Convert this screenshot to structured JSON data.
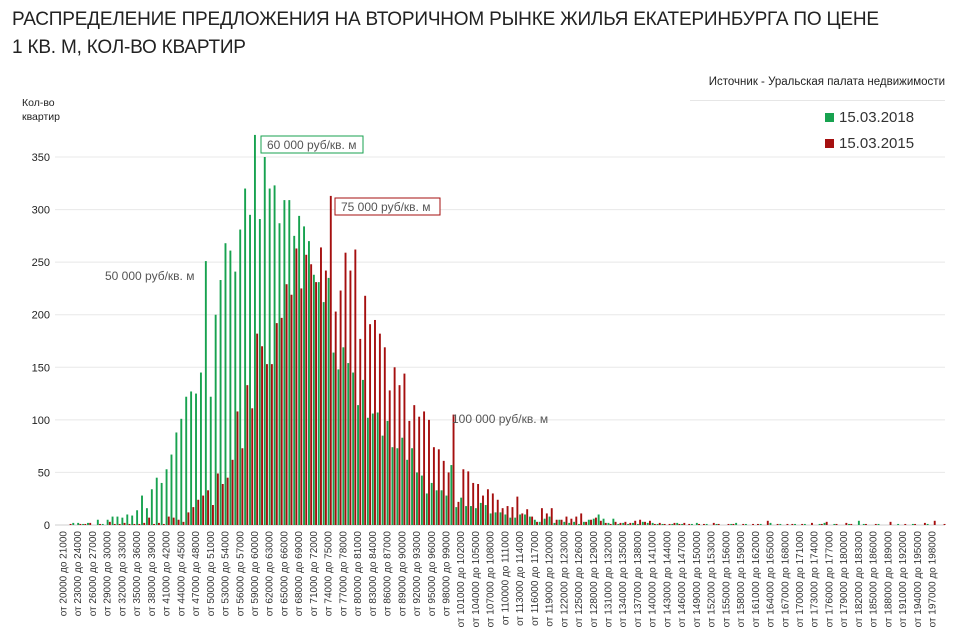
{
  "title_lines": [
    "РАСПРЕДЕЛЕНИЕ ПРЕДЛОЖЕНИЯ НА ВТОРИЧНОМ РЫНКЕ ЖИЛЬЯ ЕКАТЕРИНБУРГА ПО ЦЕНЕ",
    "1 КВ. М, КОЛ-ВО КВАРТИР"
  ],
  "source": "Источник - Уральская палата недвижимости",
  "chart_data": {
    "type": "bar",
    "title": "РАСПРЕДЕЛЕНИЕ ПРЕДЛОЖЕНИЯ НА ВТОРИЧНОМ РЫНКЕ ЖИЛЬЯ ЕКАТЕРИНБУРГА ПО ЦЕНЕ 1 КВ. М, КОЛ-ВО КВАРТИР",
    "ylabel_lines": [
      "Кол-во",
      "квартир"
    ],
    "xlabel": "",
    "ylim": [
      0,
      350
    ],
    "yticks": [
      0,
      50,
      100,
      150,
      200,
      250,
      300,
      350
    ],
    "grid": true,
    "legend_placement": "top-right",
    "x_tick_labels": [
      "от 20000 до 21000",
      "от 23000 до 24000",
      "от 26000 до 27000",
      "от 29000 до 30000",
      "от 32000 до 33000",
      "от 35000 до 36000",
      "от 38000 до 39000",
      "от 41000 до 42000",
      "от 44000 до 45000",
      "от 47000 до 48000",
      "от 50000 до 51000",
      "от 53000 до 54000",
      "от 56000 до 57000",
      "от 59000 до 60000",
      "от 62000 до 63000",
      "от 65000 до 66000",
      "от 68000 до 69000",
      "от 71000 до 72000",
      "от 74000 до 75000",
      "от 77000 до 78000",
      "от 80000 до 81000",
      "от 83000 до 84000",
      "от 86000 до 87000",
      "от 89000 до 90000",
      "от 92000 до 93000",
      "от 95000 до 96000",
      "от 98000 до 99000",
      "от 101000 до 102000",
      "от 104000 до 105000",
      "от 107000 до 108000",
      "от 110000 до 111000",
      "от 113000 до 114000",
      "от 116000 до 117000",
      "от 119000 до 120000",
      "от 122000 до 123000",
      "от 125000 до 126000",
      "от 128000 до 129000",
      "от 131000 до 132000",
      "от 134000 до 135000",
      "от 137000 до 138000",
      "от 140000 до 141000",
      "от 143000 до 144000",
      "от 146000 до 147000",
      "от 149000 до 150000",
      "от 152000 до 153000",
      "от 155000 до 156000",
      "от 158000 до 159000",
      "от 161000 до 162000",
      "от 164000 до 165000",
      "от 167000 до 168000",
      "от 170000 до 171000",
      "от 173000 до 174000",
      "от 176000 до 177000",
      "от 179000 до 180000",
      "от 182000 до 183000",
      "от 185000 до 186000",
      "от 188000 до 189000",
      "от 191000 до 192000",
      "от 194000 до 195000",
      "от 197000 до 198000"
    ],
    "tick_every": 3,
    "series": [
      {
        "name": "15.03.2018",
        "color": "#17a24f",
        "values": [
          0,
          0,
          2,
          2,
          1,
          2,
          0,
          5,
          1,
          5,
          8,
          8,
          7,
          10,
          9,
          14,
          28,
          16,
          34,
          45,
          40,
          53,
          67,
          88,
          101,
          122,
          127,
          125,
          145,
          251,
          122,
          200,
          233,
          268,
          261,
          241,
          281,
          320,
          295,
          371,
          291,
          350,
          320,
          323,
          287,
          309,
          309,
          275,
          294,
          284,
          270,
          238,
          231,
          212,
          235,
          164,
          148,
          169,
          154,
          145,
          114,
          138,
          102,
          106,
          107,
          85,
          99,
          74,
          73,
          83,
          62,
          73,
          50,
          47,
          30,
          40,
          33,
          33,
          28,
          57,
          17,
          26,
          18,
          18,
          16,
          21,
          19,
          11,
          12,
          12,
          10,
          7,
          7,
          10,
          10,
          8,
          5,
          3,
          6,
          8,
          2,
          5,
          3,
          2,
          3,
          1,
          3,
          5,
          6,
          10,
          6,
          2,
          6,
          1,
          2,
          1,
          2,
          1,
          3,
          2,
          2,
          1,
          1,
          0,
          1,
          2,
          1,
          0,
          1,
          2,
          0,
          1,
          0,
          1,
          0,
          0,
          1,
          2,
          0,
          1,
          0,
          0,
          1,
          0,
          2,
          0,
          1,
          0,
          0,
          1,
          0,
          1,
          0,
          0,
          1,
          2,
          0,
          1,
          0,
          0,
          1,
          0,
          4,
          1,
          0,
          0,
          1,
          0,
          0,
          0,
          1,
          0,
          0,
          1,
          0,
          0,
          1,
          0,
          0,
          0
        ]
      },
      {
        "name": "15.03.2015",
        "color": "#a50f0f",
        "values": [
          0,
          1,
          0,
          1,
          1,
          2,
          0,
          1,
          0,
          3,
          1,
          1,
          2,
          1,
          1,
          1,
          2,
          7,
          1,
          2,
          1,
          8,
          7,
          5,
          3,
          12,
          17,
          24,
          28,
          33,
          19,
          49,
          39,
          45,
          62,
          108,
          73,
          133,
          111,
          182,
          170,
          153,
          153,
          192,
          197,
          229,
          219,
          263,
          225,
          257,
          248,
          231,
          264,
          242,
          313,
          203,
          223,
          259,
          242,
          262,
          177,
          218,
          191,
          195,
          182,
          169,
          128,
          150,
          133,
          144,
          99,
          114,
          103,
          108,
          100,
          74,
          72,
          61,
          50,
          105,
          22,
          53,
          51,
          40,
          39,
          28,
          34,
          30,
          24,
          16,
          18,
          17,
          27,
          11,
          15,
          8,
          3,
          16,
          11,
          16,
          5,
          5,
          8,
          6,
          8,
          11,
          3,
          5,
          7,
          4,
          2,
          1,
          3,
          2,
          3,
          2,
          4,
          5,
          3,
          4,
          1,
          2,
          1,
          1,
          2,
          1,
          2,
          1,
          0,
          1,
          1,
          0,
          2,
          1,
          0,
          1,
          1,
          0,
          1,
          0,
          1,
          1,
          0,
          4,
          0,
          1,
          0,
          1,
          1,
          0,
          1,
          0,
          2,
          0,
          1,
          3,
          0,
          1,
          0,
          2,
          1,
          0,
          0,
          1,
          0,
          1,
          0,
          0,
          3,
          0,
          0,
          1,
          0,
          1,
          0,
          2,
          0,
          4,
          0,
          1
        ]
      }
    ],
    "annotations": [
      {
        "text": "50 000 руб/кв. м",
        "bar": "от 49000 до 50000",
        "boxed": false,
        "color": "#555555"
      },
      {
        "text": "60 000 руб/кв. м",
        "bar": "от 59000 до 60000",
        "boxed": true,
        "color": "#17a24f"
      },
      {
        "text": "75 000 руб/кв. м",
        "bar": "от 74000 до 75000",
        "boxed": true,
        "color": "#a50f0f"
      },
      {
        "text": "100 000 руб/кв. м",
        "bar": "от 99000 до 100000",
        "boxed": false,
        "color": "#555555"
      }
    ]
  }
}
